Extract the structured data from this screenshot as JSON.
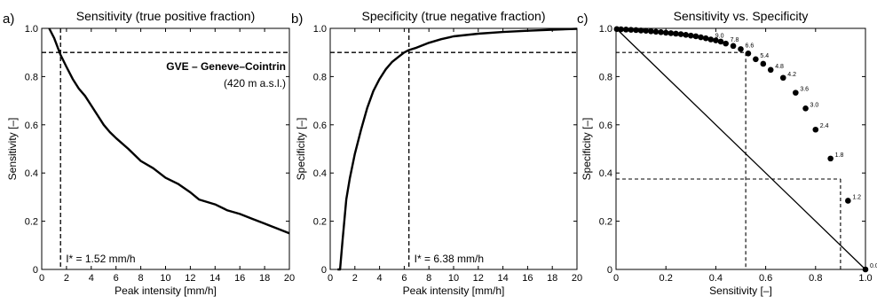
{
  "chart_data": [
    {
      "panel_label": "a)",
      "type": "line",
      "title": "Sensitivity (true positive fraction)",
      "xlabel": "Peak intensity [mm/h]",
      "ylabel": "Sensitivity [–]",
      "xlim": [
        0,
        20
      ],
      "ylim": [
        0,
        1
      ],
      "xticks": [
        0,
        2,
        4,
        6,
        8,
        10,
        12,
        14,
        16,
        18,
        20
      ],
      "yticks": [
        0,
        0.2,
        0.4,
        0.6,
        0.8,
        1
      ],
      "xtick_labels": [
        "0",
        "2",
        "4",
        "6",
        "8",
        "10",
        "12",
        "14",
        "16",
        "18",
        "20"
      ],
      "ytick_labels": [
        "0",
        "0.2",
        "0.4",
        "0.6",
        "0.8",
        "1.0"
      ],
      "grid": false,
      "series": [
        {
          "x": [
            0.6,
            1.0,
            1.52,
            2.0,
            2.5,
            3.0,
            3.5,
            4.0,
            4.5,
            5.0,
            5.5,
            6.0,
            7.0,
            8.0,
            9.0,
            10.0,
            11.0,
            12.0,
            12.7,
            14.0,
            15.0,
            16.0,
            17.0,
            18.0,
            19.0,
            20.0
          ],
          "y": [
            1.0,
            0.96,
            0.89,
            0.84,
            0.79,
            0.75,
            0.72,
            0.68,
            0.64,
            0.6,
            0.57,
            0.545,
            0.5,
            0.45,
            0.42,
            0.38,
            0.355,
            0.32,
            0.29,
            0.27,
            0.245,
            0.23,
            0.21,
            0.19,
            0.17,
            0.15
          ]
        }
      ],
      "hline": 0.9,
      "vline": 1.52,
      "annotation": "I* =  1.52 mm/h",
      "station_name": "GVE – Geneve–Cointrin",
      "station_alt": "(420 m a.s.l.)"
    },
    {
      "panel_label": "b)",
      "type": "line",
      "title": "Specificity (true negative fraction)",
      "xlabel": "Peak intensity [mm/h]",
      "ylabel": "Specificity [–]",
      "xlim": [
        0,
        20
      ],
      "ylim": [
        0,
        1
      ],
      "xticks": [
        0,
        2,
        4,
        6,
        8,
        10,
        12,
        14,
        16,
        18,
        20
      ],
      "yticks": [
        0,
        0.2,
        0.4,
        0.6,
        0.8,
        1
      ],
      "xtick_labels": [
        "0",
        "2",
        "4",
        "6",
        "8",
        "10",
        "12",
        "14",
        "16",
        "18",
        "20"
      ],
      "ytick_labels": [
        "0",
        "0.2",
        "0.4",
        "0.6",
        "0.8",
        "1.0"
      ],
      "grid": false,
      "series": [
        {
          "x": [
            0.6,
            0.8,
            1.0,
            1.3,
            1.6,
            2.0,
            2.5,
            3.0,
            3.5,
            4.0,
            4.5,
            5.0,
            5.5,
            6.0,
            6.38,
            7.0,
            8.0,
            9.0,
            10.0,
            12.0,
            14.0,
            16.0,
            18.0,
            20.0
          ],
          "y": [
            0.0,
            0.0,
            0.12,
            0.29,
            0.38,
            0.48,
            0.58,
            0.67,
            0.74,
            0.79,
            0.83,
            0.86,
            0.88,
            0.9,
            0.91,
            0.92,
            0.94,
            0.955,
            0.967,
            0.978,
            0.985,
            0.99,
            0.994,
            0.998
          ]
        }
      ],
      "hline": 0.9,
      "vline": 6.38,
      "annotation": "I* =  6.38 mm/h"
    },
    {
      "panel_label": "c)",
      "type": "scatter",
      "title": "Sensitivity vs. Specificity",
      "xlabel": "Sensitivity [–]",
      "ylabel": "Specificity [–]",
      "xlim": [
        0,
        1
      ],
      "ylim": [
        0,
        1
      ],
      "xticks": [
        0,
        0.2,
        0.4,
        0.6,
        0.8,
        1
      ],
      "yticks": [
        0,
        0.2,
        0.4,
        0.6,
        0.8,
        1
      ],
      "xtick_labels": [
        "0",
        "0.2",
        "0.4",
        "0.6",
        "0.8",
        "1.0"
      ],
      "ytick_labels": [
        "0",
        "0.2",
        "0.4",
        "0.6",
        "0.8",
        "1.0"
      ],
      "grid": false,
      "points": [
        {
          "x": 0.003,
          "y": 0.997
        },
        {
          "x": 0.02,
          "y": 0.996
        },
        {
          "x": 0.04,
          "y": 0.995
        },
        {
          "x": 0.06,
          "y": 0.994
        },
        {
          "x": 0.08,
          "y": 0.993
        },
        {
          "x": 0.1,
          "y": 0.991
        },
        {
          "x": 0.12,
          "y": 0.99
        },
        {
          "x": 0.14,
          "y": 0.988
        },
        {
          "x": 0.16,
          "y": 0.986
        },
        {
          "x": 0.18,
          "y": 0.984
        },
        {
          "x": 0.2,
          "y": 0.982
        },
        {
          "x": 0.22,
          "y": 0.98
        },
        {
          "x": 0.24,
          "y": 0.978
        },
        {
          "x": 0.26,
          "y": 0.976
        },
        {
          "x": 0.28,
          "y": 0.973
        },
        {
          "x": 0.3,
          "y": 0.97
        },
        {
          "x": 0.32,
          "y": 0.967
        },
        {
          "x": 0.34,
          "y": 0.963
        },
        {
          "x": 0.36,
          "y": 0.959
        },
        {
          "x": 0.38,
          "y": 0.954,
          "label": "9.0"
        },
        {
          "x": 0.4,
          "y": 0.95
        },
        {
          "x": 0.42,
          "y": 0.945
        },
        {
          "x": 0.44,
          "y": 0.937,
          "label": "7.8"
        },
        {
          "x": 0.47,
          "y": 0.927
        },
        {
          "x": 0.5,
          "y": 0.914,
          "label": "6.6"
        },
        {
          "x": 0.53,
          "y": 0.896
        },
        {
          "x": 0.56,
          "y": 0.872,
          "label": "5.4"
        },
        {
          "x": 0.59,
          "y": 0.853
        },
        {
          "x": 0.62,
          "y": 0.828,
          "label": "4.8"
        },
        {
          "x": 0.67,
          "y": 0.795,
          "label": "4.2"
        },
        {
          "x": 0.72,
          "y": 0.733,
          "label": "3.6"
        },
        {
          "x": 0.76,
          "y": 0.668,
          "label": "3.0"
        },
        {
          "x": 0.8,
          "y": 0.58,
          "label": "2.4"
        },
        {
          "x": 0.86,
          "y": 0.46,
          "label": "1.8"
        },
        {
          "x": 0.93,
          "y": 0.285,
          "label": "1.2"
        },
        {
          "x": 1.0,
          "y": 0.0,
          "label": "0.0"
        }
      ],
      "diagonal": [
        [
          0,
          1
        ],
        [
          1,
          0
        ]
      ],
      "guide_lines": [
        {
          "x": 0.52,
          "y": 0.9
        },
        {
          "x": 0.9,
          "y": 0.375
        }
      ]
    }
  ]
}
